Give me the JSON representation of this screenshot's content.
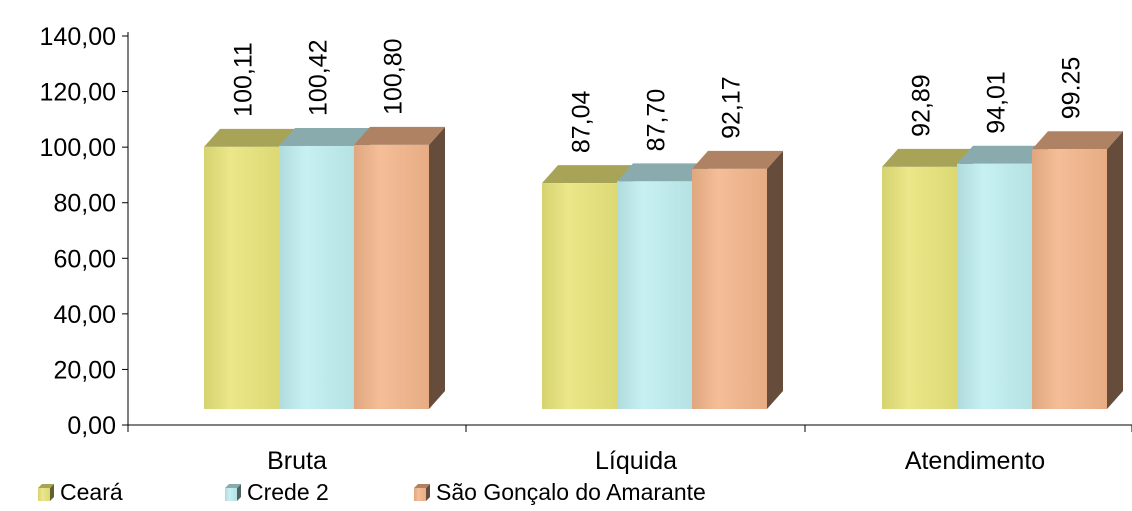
{
  "chart_data": {
    "type": "bar",
    "style": "3d-clustered-column",
    "categories": [
      "Bruta",
      "Líquida",
      "Atendimento"
    ],
    "series": [
      {
        "name": "Ceará",
        "values": [
          100.11,
          87.04,
          92.89
        ],
        "labels": [
          "100,11",
          "87,04",
          "92,89"
        ],
        "color": "#e8e47a"
      },
      {
        "name": "Crede 2",
        "values": [
          100.42,
          87.7,
          94.01
        ],
        "labels": [
          "100,42",
          "87,70",
          "94,01"
        ],
        "color": "#bfeef0"
      },
      {
        "name": "São Gonçalo do Amarante",
        "values": [
          100.8,
          92.17,
          99.25
        ],
        "labels": [
          "100,80",
          "92,17",
          "99.25"
        ],
        "color": "#f3b58a"
      }
    ],
    "y_ticks": [
      "0,00",
      "20,00",
      "40,00",
      "60,00",
      "80,00",
      "100,00",
      "120,00",
      "140,00"
    ],
    "ylim": [
      0,
      140
    ],
    "grid": false,
    "legend_position": "bottom-left"
  }
}
